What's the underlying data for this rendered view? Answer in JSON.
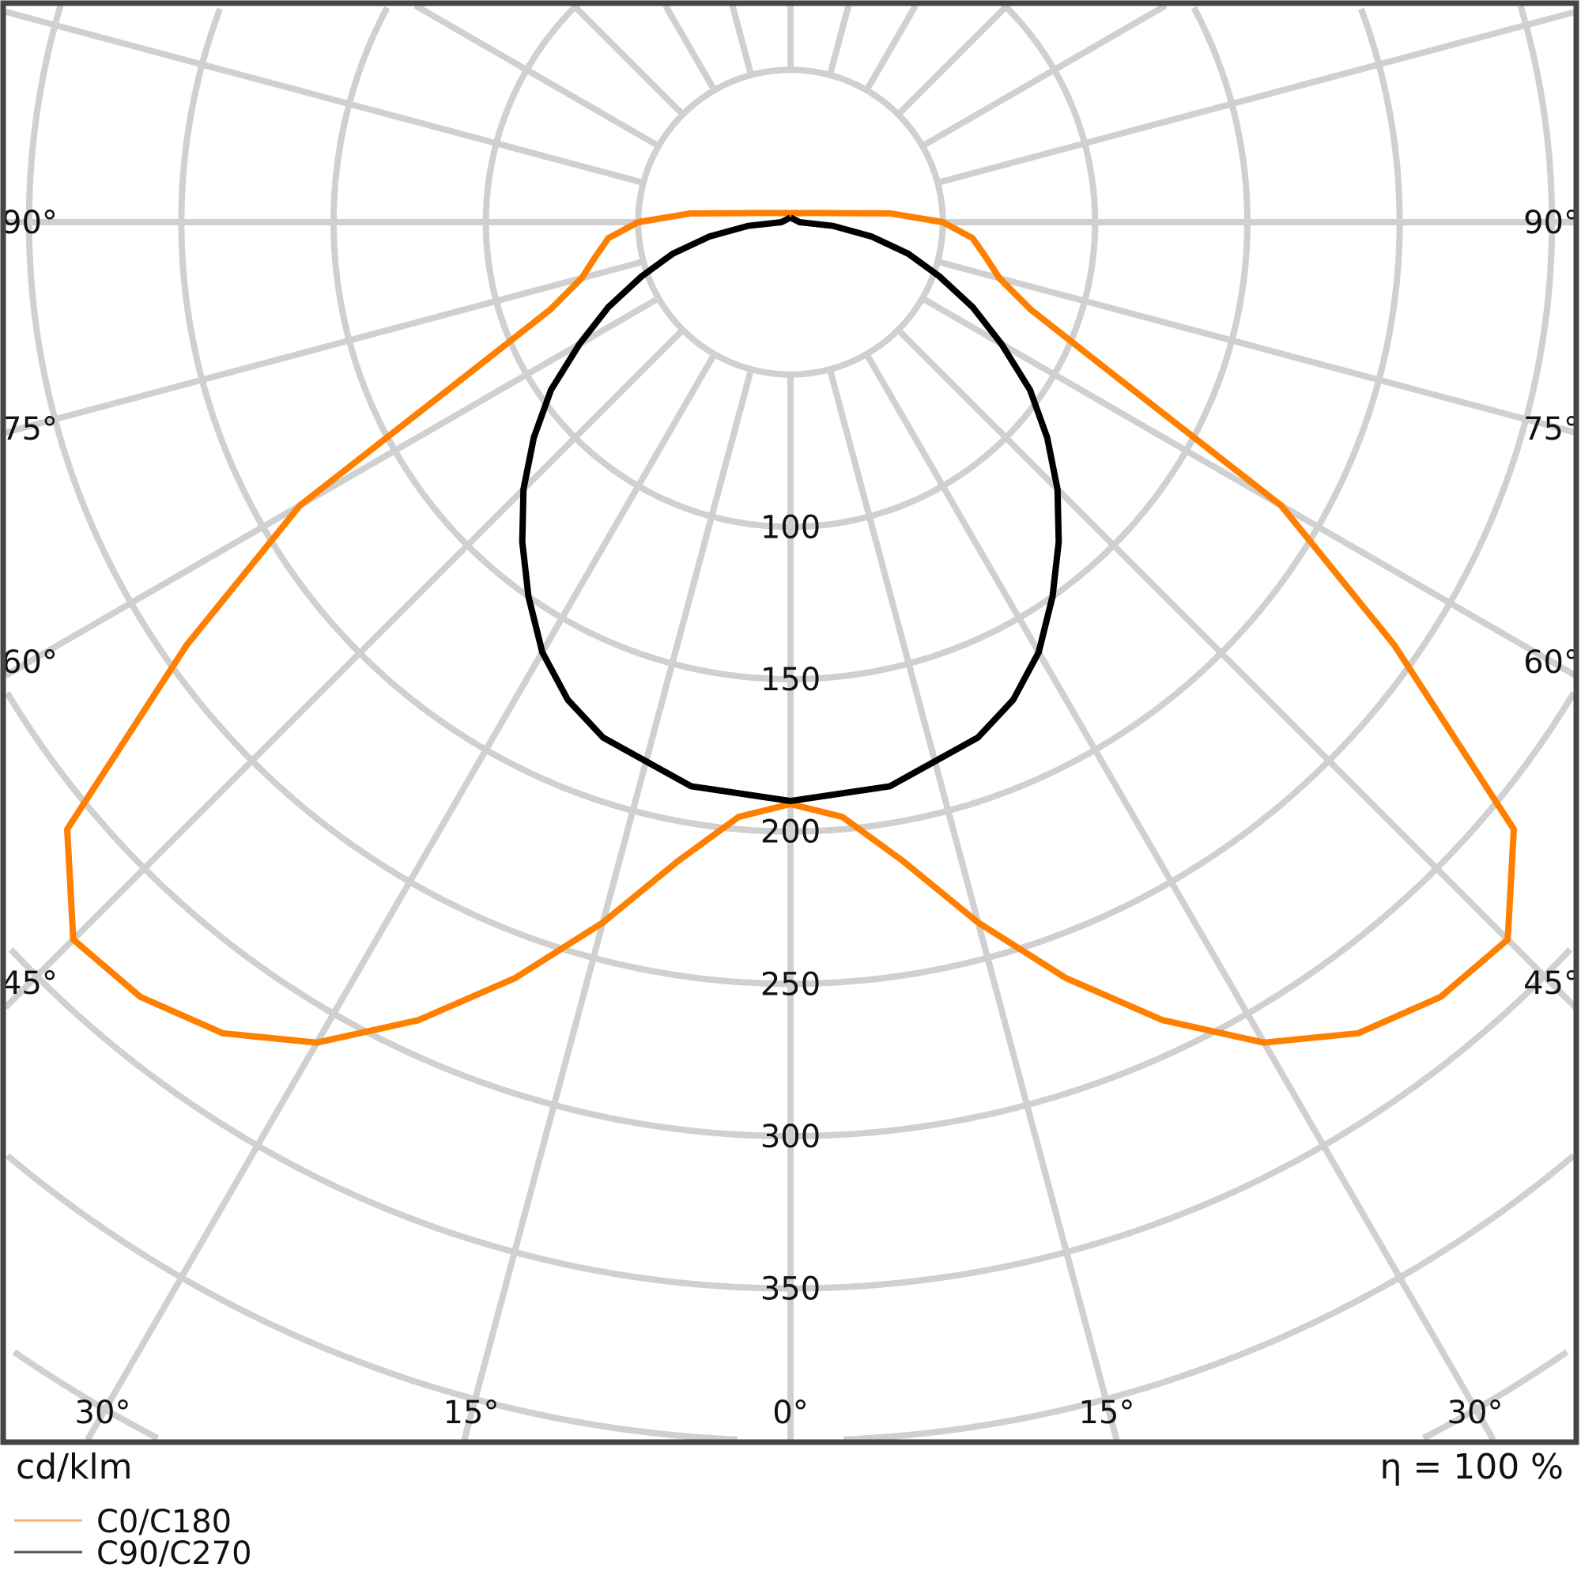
{
  "chart_data": {
    "type": "polar-line",
    "unit_label": "cd/klm",
    "efficiency_label": "η = 100 %",
    "radial_ticks": [
      100,
      150,
      200,
      250,
      300,
      350
    ],
    "radial_tick_labels": [
      "100",
      "150",
      "200",
      "250",
      "300",
      "350"
    ],
    "grid": true,
    "angle_step_deg": 15,
    "angle_labels": {
      "left": [
        "90°",
        "75°",
        "60°",
        "45°"
      ],
      "right": [
        "90°",
        "75°",
        "60°",
        "45°"
      ],
      "bottom": [
        "30°",
        "15°",
        "0°",
        "15°",
        "30°"
      ]
    },
    "legend_position": "bottom-left",
    "series": [
      {
        "name": "C0/C180",
        "color": "#ff8000",
        "angles": [
          0,
          5,
          10,
          15,
          20,
          25,
          30,
          35,
          40,
          45,
          50,
          55,
          60,
          65,
          70,
          75,
          80,
          85,
          90,
          95,
          100,
          105,
          110,
          120,
          135,
          150,
          165,
          180
        ],
        "values": [
          191,
          196,
          213,
          238,
          264,
          289,
          311,
          325,
          332,
          333,
          310,
          242,
          186,
          115,
          84,
          71,
          65,
          60,
          50,
          33,
          17,
          11.6,
          8.8,
          6,
          4.2,
          3.5,
          3.1,
          3
        ]
      },
      {
        "name": "C90/C270",
        "color": "#000000",
        "angles": [
          0,
          10,
          20,
          25,
          30,
          35,
          40,
          45,
          50,
          55,
          60,
          65,
          70,
          75,
          80,
          85,
          90,
          180
        ],
        "values": [
          190,
          188,
          180,
          173,
          163,
          150,
          137,
          124,
          110,
          96,
          80,
          66,
          52,
          40,
          27,
          14,
          3,
          1.5
        ]
      }
    ]
  }
}
